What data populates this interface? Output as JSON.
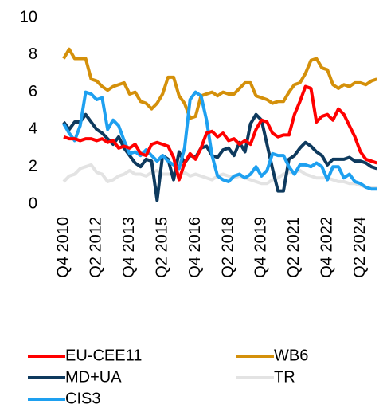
{
  "chart_data": {
    "type": "line",
    "categories": [
      "Q4 2010",
      null,
      null,
      null,
      null,
      null,
      "Q2 2012",
      null,
      null,
      null,
      null,
      null,
      "Q4 2013",
      null,
      null,
      null,
      null,
      null,
      "Q2 2015",
      null,
      null,
      null,
      null,
      null,
      "Q4 2016",
      null,
      null,
      null,
      null,
      null,
      "Q2 2018",
      null,
      null,
      null,
      null,
      null,
      "Q4 2019",
      null,
      null,
      null,
      null,
      null,
      "Q2 2021",
      null,
      null,
      null,
      null,
      null,
      "Q4 2022",
      null,
      null,
      null,
      null,
      null,
      "Q2 2024",
      null,
      null,
      null
    ],
    "ylim": [
      0,
      10
    ],
    "yticks": [
      0,
      2,
      4,
      6,
      8,
      10
    ],
    "series": [
      {
        "name": "EU-CEE11",
        "color": "#ff0000",
        "values": [
          3.6,
          3.5,
          3.5,
          3.4,
          3.5,
          3.5,
          3.4,
          3.5,
          3.3,
          3.4,
          3.0,
          3.1,
          3.0,
          3.2,
          2.7,
          2.6,
          3.2,
          3.3,
          3.2,
          3.1,
          2.5,
          1.3,
          2.2,
          2.7,
          2.4,
          3.0,
          3.8,
          3.9,
          3.6,
          3.8,
          3.4,
          3.5,
          3.2,
          3.4,
          3.2,
          4.0,
          4.5,
          4.4,
          3.8,
          3.6,
          3.7,
          3.7,
          4.8,
          5.5,
          6.3,
          6.2,
          4.4,
          4.7,
          4.8,
          4.5,
          5.1,
          4.8,
          4.2,
          3.6,
          2.8,
          2.4,
          2.3,
          2.2
        ]
      },
      {
        "name": "WB6",
        "color": "#d4900a",
        "values": [
          7.8,
          8.3,
          7.8,
          7.8,
          7.8,
          6.7,
          6.6,
          6.3,
          6.1,
          6.3,
          6.4,
          6.5,
          5.9,
          6.0,
          5.5,
          5.4,
          5.1,
          5.4,
          5.9,
          6.8,
          6.8,
          5.8,
          5.4,
          4.6,
          4.7,
          5.8,
          5.9,
          6.0,
          5.8,
          6.0,
          5.9,
          5.9,
          6.2,
          6.5,
          6.5,
          5.8,
          5.7,
          5.6,
          5.4,
          5.5,
          5.5,
          6.0,
          6.4,
          6.5,
          7.0,
          7.7,
          7.8,
          7.3,
          7.2,
          6.4,
          6.2,
          6.4,
          6.3,
          6.5,
          6.5,
          6.4,
          6.6,
          6.7
        ]
      },
      {
        "name": "MD+UA",
        "color": "#0e3a5e",
        "values": [
          4.4,
          4.0,
          4.4,
          4.4,
          4.8,
          4.4,
          4.0,
          3.8,
          3.5,
          3.2,
          3.6,
          3.0,
          2.6,
          2.2,
          2.0,
          2.4,
          2.3,
          0.2,
          2.6,
          2.4,
          1.3,
          2.8,
          2.2,
          2.6,
          2.5,
          3.0,
          3.1,
          2.6,
          2.5,
          2.9,
          3.0,
          2.6,
          3.3,
          2.8,
          4.3,
          4.8,
          4.5,
          3.2,
          1.9,
          0.7,
          0.7,
          2.4,
          2.6,
          3.0,
          3.3,
          3.1,
          2.8,
          2.6,
          2.1,
          2.4,
          2.4,
          2.4,
          2.5,
          2.3,
          2.3,
          2.2,
          2.0,
          1.9
        ]
      },
      {
        "name": "TR",
        "color": "#e3e3e3",
        "values": [
          1.2,
          1.5,
          1.6,
          1.9,
          2.0,
          2.1,
          1.7,
          1.6,
          1.2,
          1.3,
          1.5,
          1.6,
          1.8,
          1.6,
          1.6,
          1.5,
          1.7,
          1.8,
          1.6,
          1.6,
          1.6,
          1.5,
          1.7,
          1.5,
          1.6,
          1.5,
          1.4,
          1.3,
          1.5,
          1.6,
          1.5,
          1.4,
          1.5,
          1.4,
          1.3,
          1.2,
          1.1,
          1.1,
          1.3,
          1.4,
          1.6,
          1.7,
          1.7,
          1.8,
          1.6,
          1.5,
          1.4,
          1.4,
          1.4,
          1.3,
          1.2,
          1.2,
          1.1,
          1.1,
          1.0,
          0.9,
          0.9,
          0.9
        ]
      },
      {
        "name": "CIS3",
        "color": "#1ea0f0",
        "values": [
          4.3,
          3.8,
          3.4,
          4.2,
          6.0,
          5.9,
          5.6,
          5.7,
          4.0,
          4.5,
          4.2,
          3.4,
          2.7,
          2.8,
          2.6,
          2.9,
          2.6,
          2.3,
          2.6,
          2.3,
          2.1,
          1.9,
          3.0,
          5.6,
          6.0,
          5.8,
          4.5,
          2.6,
          1.5,
          1.3,
          1.2,
          1.5,
          1.6,
          1.4,
          1.6,
          2.0,
          1.5,
          1.8,
          2.7,
          2.6,
          2.6,
          2.0,
          1.6,
          2.1,
          2.1,
          2.0,
          2.2,
          2.0,
          1.3,
          2.0,
          2.0,
          1.4,
          1.6,
          1.2,
          1.1,
          0.9,
          0.8,
          0.8
        ]
      }
    ]
  }
}
